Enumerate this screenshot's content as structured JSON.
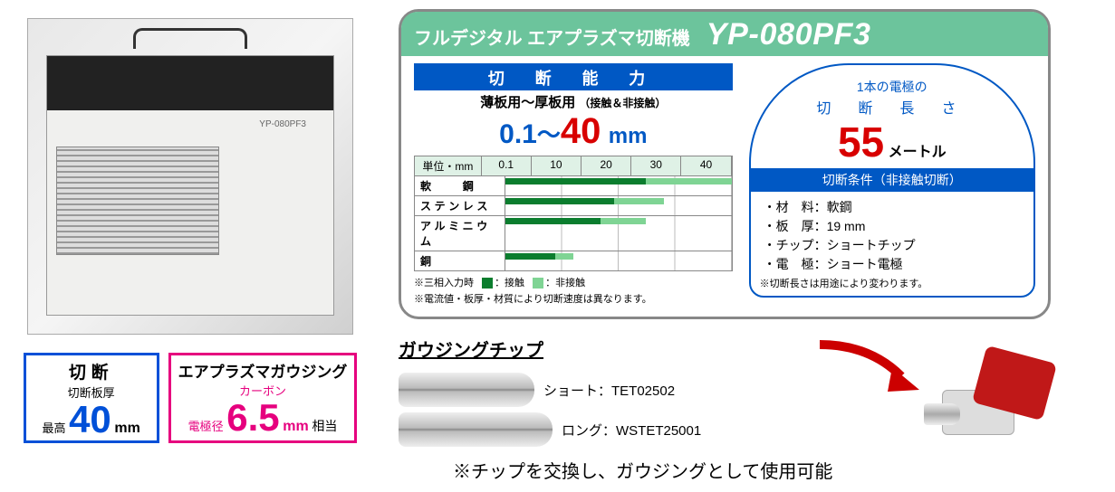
{
  "specBoxes": {
    "cut": {
      "title": "切断",
      "line2_prefix": "切断板厚",
      "line2_label": "最高",
      "value": "40",
      "unit": "mm"
    },
    "goug": {
      "title": "エアプラズマガウジング",
      "line2_prefix": "カーボン",
      "line2_label": "電極径",
      "value": "6.5",
      "unit": "mm",
      "suffix": "相当"
    }
  },
  "panel": {
    "header_sub": "フルデジタル エアプラズマ切断機",
    "model": "YP-080PF3",
    "capacity": {
      "title": "切 断 能 力",
      "subtitle": "薄板用～厚板用",
      "subtitle_note": "（接触＆非接触）",
      "range_min": "0.1",
      "range_sep": "～",
      "range_max": "40",
      "range_unit": "mm"
    },
    "chart": {
      "unit_label": "単位・mm",
      "ticks": [
        "0.1",
        "10",
        "20",
        "30",
        "40"
      ],
      "rows": [
        {
          "label": "軟　　鋼",
          "contact_pct": 62,
          "noncontact_pct": 38
        },
        {
          "label": "ステンレス",
          "contact_pct": 48,
          "noncontact_pct": 22
        },
        {
          "label": "アルミニウム",
          "contact_pct": 42,
          "noncontact_pct": 20
        },
        {
          "label": "銅",
          "contact_pct": 22,
          "noncontact_pct": 8
        }
      ],
      "legend_prefix": "※三相入力時",
      "legend_contact": "：接触",
      "legend_noncontact": "：非接触",
      "note": "※電流値・板厚・材質により切断速度は異なります。",
      "colors": {
        "contact": "#0b7d2e",
        "noncontact": "#7fd494"
      }
    },
    "electrode": {
      "line1": "1本の電極の",
      "line2": "切 断 長 さ",
      "value": "55",
      "unit": "メートル",
      "cond_title": "切断条件（非接触切断）",
      "conds": [
        "・材　料：軟鋼",
        "・板　厚：19 mm",
        "・チップ：ショートチップ",
        "・電　極：ショート電極"
      ],
      "cond_note": "※切断長さは用途により変わります。"
    }
  },
  "gouging": {
    "title": "ガウジングチップ",
    "tips": [
      {
        "label": "ショート：TET02502",
        "style": "short"
      },
      {
        "label": "ロング：WSTET25001",
        "style": "long"
      }
    ],
    "final_note": "※チップを交換し、ガウジングとして使用可能"
  },
  "colors": {
    "blue": "#0058c4",
    "red": "#d80000",
    "green_header": "#6cc49c",
    "pink": "#e6007e"
  }
}
